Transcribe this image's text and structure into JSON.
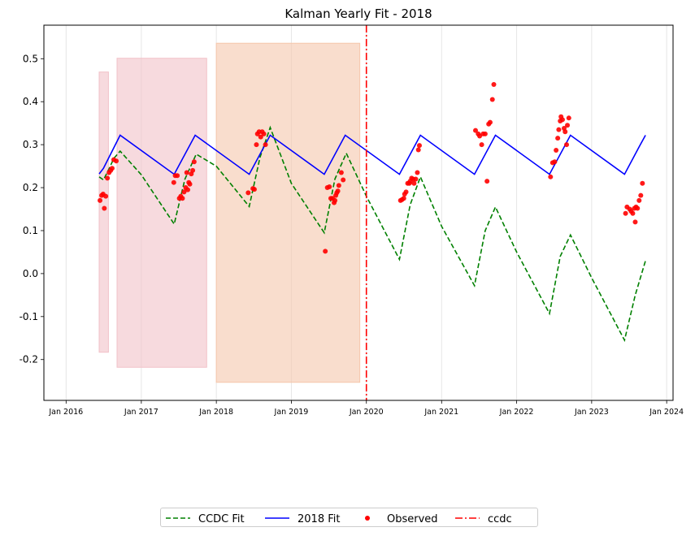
{
  "chart_data": {
    "type": "line",
    "title": "Kalman Yearly Fit - 2018",
    "xlabel": "",
    "ylabel": "",
    "xlim": [
      "2015-09-15",
      "2024-02-01"
    ],
    "ylim": [
      -0.295,
      0.578
    ],
    "x_ticks": [
      {
        "date": "2016-01-01",
        "label": "Jan 2016"
      },
      {
        "date": "2017-01-01",
        "label": "Jan 2017"
      },
      {
        "date": "2018-01-01",
        "label": "Jan 2018"
      },
      {
        "date": "2019-01-01",
        "label": "Jan 2019"
      },
      {
        "date": "2020-01-01",
        "label": "Jan 2020"
      },
      {
        "date": "2021-01-01",
        "label": "Jan 2021"
      },
      {
        "date": "2022-01-01",
        "label": "Jan 2022"
      },
      {
        "date": "2023-01-01",
        "label": "Jan 2023"
      },
      {
        "date": "2024-01-01",
        "label": "Jan 2024"
      }
    ],
    "y_ticks": [
      -0.2,
      -0.1,
      0.0,
      0.1,
      0.2,
      0.3,
      0.4,
      0.5
    ],
    "grid": "x-only",
    "legend_placement": "below",
    "shaded_regions": [
      {
        "x0": "2016-06-10",
        "x1": "2016-07-25",
        "y0": -0.183,
        "y1": 0.469,
        "color": "#f2c1c8"
      },
      {
        "x0": "2016-09-05",
        "x1": "2017-11-15",
        "y0": -0.218,
        "y1": 0.501,
        "color": "#f2c1c8"
      },
      {
        "x0": "2018-01-01",
        "x1": "2019-11-30",
        "y0": -0.253,
        "y1": 0.536,
        "color": "#f5c7ab"
      }
    ],
    "series": [
      {
        "name": "CCDC Fit",
        "style": "dashed",
        "color": "#008000",
        "points": [
          [
            "2016-06-10",
            0.225
          ],
          [
            "2016-07-01",
            0.218
          ],
          [
            "2016-08-01",
            0.248
          ],
          [
            "2016-08-20",
            0.268
          ],
          [
            "2016-09-20",
            0.285
          ],
          [
            "2017-01-01",
            0.23
          ],
          [
            "2017-06-10",
            0.115
          ],
          [
            "2017-08-01",
            0.22
          ],
          [
            "2017-09-25",
            0.278
          ],
          [
            "2018-01-01",
            0.25
          ],
          [
            "2018-06-10",
            0.156
          ],
          [
            "2018-08-01",
            0.27
          ],
          [
            "2018-09-20",
            0.34
          ],
          [
            "2019-01-01",
            0.21
          ],
          [
            "2019-06-10",
            0.095
          ],
          [
            "2019-08-01",
            0.22
          ],
          [
            "2019-09-25",
            0.28
          ],
          [
            "2020-01-01",
            0.18
          ],
          [
            "2020-06-10",
            0.033
          ],
          [
            "2020-08-01",
            0.16
          ],
          [
            "2020-09-20",
            0.225
          ],
          [
            "2021-01-01",
            0.11
          ],
          [
            "2021-06-10",
            -0.028
          ],
          [
            "2021-08-01",
            0.1
          ],
          [
            "2021-09-20",
            0.155
          ],
          [
            "2022-01-01",
            0.05
          ],
          [
            "2022-06-10",
            -0.093
          ],
          [
            "2022-08-01",
            0.04
          ],
          [
            "2022-09-20",
            0.09
          ],
          [
            "2023-01-01",
            -0.01
          ],
          [
            "2023-06-10",
            -0.155
          ],
          [
            "2023-08-01",
            -0.05
          ],
          [
            "2023-09-20",
            0.03
          ]
        ]
      },
      {
        "name": "2018 Fit",
        "style": "solid",
        "color": "#0000ff",
        "points": [
          [
            "2016-06-10",
            0.232
          ],
          [
            "2016-07-01",
            0.245
          ],
          [
            "2016-09-20",
            0.322
          ],
          [
            "2017-06-10",
            0.231
          ],
          [
            "2017-09-20",
            0.322
          ],
          [
            "2018-06-10",
            0.231
          ],
          [
            "2018-09-20",
            0.322
          ],
          [
            "2019-06-10",
            0.231
          ],
          [
            "2019-09-20",
            0.322
          ],
          [
            "2020-06-10",
            0.231
          ],
          [
            "2020-09-20",
            0.322
          ],
          [
            "2021-06-10",
            0.231
          ],
          [
            "2021-09-20",
            0.322
          ],
          [
            "2022-06-10",
            0.231
          ],
          [
            "2022-09-20",
            0.322
          ],
          [
            "2023-06-10",
            0.231
          ],
          [
            "2023-08-20",
            0.295
          ],
          [
            "2023-09-20",
            0.322
          ]
        ]
      },
      {
        "name": "Observed",
        "style": "points",
        "color": "#ff0000",
        "points": [
          [
            "2016-06-14",
            0.17
          ],
          [
            "2016-06-22",
            0.182
          ],
          [
            "2016-06-29",
            0.185
          ],
          [
            "2016-07-05",
            0.152
          ],
          [
            "2016-07-12",
            0.18
          ],
          [
            "2016-07-20",
            0.222
          ],
          [
            "2016-07-28",
            0.235
          ],
          [
            "2016-08-05",
            0.24
          ],
          [
            "2016-08-12",
            0.245
          ],
          [
            "2016-08-20",
            0.265
          ],
          [
            "2016-09-01",
            0.262
          ],
          [
            "2017-06-08",
            0.212
          ],
          [
            "2017-06-15",
            0.228
          ],
          [
            "2017-06-25",
            0.228
          ],
          [
            "2017-07-05",
            0.175
          ],
          [
            "2017-07-12",
            0.18
          ],
          [
            "2017-07-20",
            0.175
          ],
          [
            "2017-07-28",
            0.19
          ],
          [
            "2017-08-05",
            0.2
          ],
          [
            "2017-08-10",
            0.235
          ],
          [
            "2017-08-15",
            0.195
          ],
          [
            "2017-08-20",
            0.212
          ],
          [
            "2017-08-25",
            0.208
          ],
          [
            "2017-09-01",
            0.232
          ],
          [
            "2017-09-08",
            0.24
          ],
          [
            "2017-09-15",
            0.26
          ],
          [
            "2018-06-05",
            0.188
          ],
          [
            "2018-06-28",
            0.198
          ],
          [
            "2018-07-05",
            0.196
          ],
          [
            "2018-07-15",
            0.3
          ],
          [
            "2018-07-20",
            0.325
          ],
          [
            "2018-07-28",
            0.33
          ],
          [
            "2018-08-05",
            0.318
          ],
          [
            "2018-08-12",
            0.33
          ],
          [
            "2018-08-20",
            0.325
          ],
          [
            "2018-08-28",
            0.3
          ],
          [
            "2019-06-15",
            0.052
          ],
          [
            "2019-06-25",
            0.2
          ],
          [
            "2019-07-05",
            0.202
          ],
          [
            "2019-07-12",
            0.175
          ],
          [
            "2019-07-20",
            0.175
          ],
          [
            "2019-07-28",
            0.165
          ],
          [
            "2019-08-01",
            0.17
          ],
          [
            "2019-08-05",
            0.182
          ],
          [
            "2019-08-10",
            0.188
          ],
          [
            "2019-08-15",
            0.192
          ],
          [
            "2019-08-20",
            0.205
          ],
          [
            "2019-09-01",
            0.235
          ],
          [
            "2019-09-10",
            0.218
          ],
          [
            "2020-06-15",
            0.17
          ],
          [
            "2020-06-22",
            0.172
          ],
          [
            "2020-07-01",
            0.175
          ],
          [
            "2020-07-05",
            0.185
          ],
          [
            "2020-07-12",
            0.19
          ],
          [
            "2020-07-20",
            0.21
          ],
          [
            "2020-07-28",
            0.21
          ],
          [
            "2020-08-01",
            0.215
          ],
          [
            "2020-08-08",
            0.222
          ],
          [
            "2020-08-15",
            0.22
          ],
          [
            "2020-08-20",
            0.21
          ],
          [
            "2020-08-28",
            0.22
          ],
          [
            "2020-09-05",
            0.235
          ],
          [
            "2020-09-10",
            0.288
          ],
          [
            "2020-09-15",
            0.298
          ],
          [
            "2021-06-15",
            0.333
          ],
          [
            "2021-06-28",
            0.325
          ],
          [
            "2021-07-05",
            0.32
          ],
          [
            "2021-07-15",
            0.3
          ],
          [
            "2021-07-22",
            0.325
          ],
          [
            "2021-08-01",
            0.325
          ],
          [
            "2021-08-10",
            0.215
          ],
          [
            "2021-08-18",
            0.348
          ],
          [
            "2021-08-25",
            0.352
          ],
          [
            "2021-09-05",
            0.405
          ],
          [
            "2021-09-12",
            0.44
          ],
          [
            "2022-06-15",
            0.225
          ],
          [
            "2022-06-25",
            0.258
          ],
          [
            "2022-07-05",
            0.26
          ],
          [
            "2022-07-12",
            0.287
          ],
          [
            "2022-07-20",
            0.315
          ],
          [
            "2022-07-25",
            0.335
          ],
          [
            "2022-08-01",
            0.355
          ],
          [
            "2022-08-05",
            0.365
          ],
          [
            "2022-08-12",
            0.358
          ],
          [
            "2022-08-20",
            0.338
          ],
          [
            "2022-08-25",
            0.33
          ],
          [
            "2022-09-01",
            0.3
          ],
          [
            "2022-09-05",
            0.345
          ],
          [
            "2022-09-12",
            0.362
          ],
          [
            "2023-06-15",
            0.14
          ],
          [
            "2023-06-22",
            0.155
          ],
          [
            "2023-07-05",
            0.15
          ],
          [
            "2023-07-12",
            0.145
          ],
          [
            "2023-07-20",
            0.14
          ],
          [
            "2023-07-28",
            0.152
          ],
          [
            "2023-08-01",
            0.12
          ],
          [
            "2023-08-05",
            0.155
          ],
          [
            "2023-08-12",
            0.152
          ],
          [
            "2023-08-20",
            0.17
          ],
          [
            "2023-08-28",
            0.182
          ],
          [
            "2023-09-05",
            0.21
          ]
        ]
      },
      {
        "name": "ccdc",
        "style": "dashdot",
        "color": "#ff0000",
        "vertical_line_at": "2020-01-01"
      }
    ]
  }
}
